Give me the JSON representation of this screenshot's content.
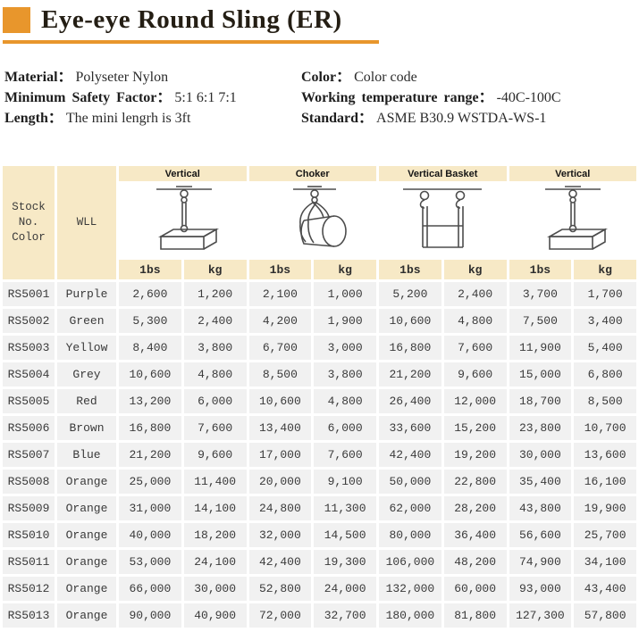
{
  "page": {
    "title": "Eye-eye Round Sling (ER)"
  },
  "colors": {
    "accent_orange": "#E8962C",
    "header_cream": "#F7E9C6",
    "row_gray": "#F1F1F1"
  },
  "specs": {
    "left": [
      {
        "label": "Material：",
        "value": "Polyseter Nylon"
      },
      {
        "label": "Minimum Safety Factor：",
        "value": "5:1 6:1 7:1"
      },
      {
        "label": "Length：",
        "value": "The mini lengrh is 3ft"
      }
    ],
    "right": [
      {
        "label": "Color：",
        "value": "Color code"
      },
      {
        "label": "Working temperature range：",
        "value": "-40C-100C"
      },
      {
        "label": "Standard：",
        "value": "ASME B30.9 WSTDA-WS-1"
      }
    ]
  },
  "table": {
    "corner": {
      "stock_line1": "Stock No.",
      "stock_line2": "Color",
      "wll": "WLL"
    },
    "groups": [
      {
        "label": "Vertical"
      },
      {
        "label": "Choker"
      },
      {
        "label": "Vertical Basket"
      },
      {
        "label": "Vertical"
      }
    ],
    "sub_headers": [
      "1bs",
      "kg",
      "1bs",
      "kg",
      "1bs",
      "kg",
      "1bs",
      "kg"
    ],
    "diagrams": [
      "vertical-sling-diagram",
      "choker-sling-diagram",
      "vertical-basket-sling-diagram",
      "vertical-sling-diagram"
    ],
    "rows": [
      {
        "stock": "RS5001",
        "color": "Purple",
        "values": [
          "2,600",
          "1,200",
          "2,100",
          "1,000",
          "5,200",
          "2,400",
          "3,700",
          "1,700"
        ]
      },
      {
        "stock": "RS5002",
        "color": "Green",
        "values": [
          "5,300",
          "2,400",
          "4,200",
          "1,900",
          "10,600",
          "4,800",
          "7,500",
          "3,400"
        ]
      },
      {
        "stock": "RS5003",
        "color": "Yellow",
        "values": [
          "8,400",
          "3,800",
          "6,700",
          "3,000",
          "16,800",
          "7,600",
          "11,900",
          "5,400"
        ]
      },
      {
        "stock": "RS5004",
        "color": "Grey",
        "values": [
          "10,600",
          "4,800",
          "8,500",
          "3,800",
          "21,200",
          "9,600",
          "15,000",
          "6,800"
        ]
      },
      {
        "stock": "RS5005",
        "color": "Red",
        "values": [
          "13,200",
          "6,000",
          "10,600",
          "4,800",
          "26,400",
          "12,000",
          "18,700",
          "8,500"
        ]
      },
      {
        "stock": "RS5006",
        "color": "Brown",
        "values": [
          "16,800",
          "7,600",
          "13,400",
          "6,000",
          "33,600",
          "15,200",
          "23,800",
          "10,700"
        ]
      },
      {
        "stock": "RS5007",
        "color": "Blue",
        "values": [
          "21,200",
          "9,600",
          "17,000",
          "7,600",
          "42,400",
          "19,200",
          "30,000",
          "13,600"
        ]
      },
      {
        "stock": "RS5008",
        "color": "Orange",
        "values": [
          "25,000",
          "11,400",
          "20,000",
          "9,100",
          "50,000",
          "22,800",
          "35,400",
          "16,100"
        ]
      },
      {
        "stock": "RS5009",
        "color": "Orange",
        "values": [
          "31,000",
          "14,100",
          "24,800",
          "11,300",
          "62,000",
          "28,200",
          "43,800",
          "19,900"
        ]
      },
      {
        "stock": "RS5010",
        "color": "Orange",
        "values": [
          "40,000",
          "18,200",
          "32,000",
          "14,500",
          "80,000",
          "36,400",
          "56,600",
          "25,700"
        ]
      },
      {
        "stock": "RS5011",
        "color": "Orange",
        "values": [
          "53,000",
          "24,100",
          "42,400",
          "19,300",
          "106,000",
          "48,200",
          "74,900",
          "34,100"
        ]
      },
      {
        "stock": "RS5012",
        "color": "Orange",
        "values": [
          "66,000",
          "30,000",
          "52,800",
          "24,000",
          "132,000",
          "60,000",
          "93,000",
          "43,400"
        ]
      },
      {
        "stock": "RS5013",
        "color": "Orange",
        "values": [
          "90,000",
          "40,900",
          "72,000",
          "32,700",
          "180,000",
          "81,800",
          "127,300",
          "57,800"
        ]
      }
    ]
  }
}
